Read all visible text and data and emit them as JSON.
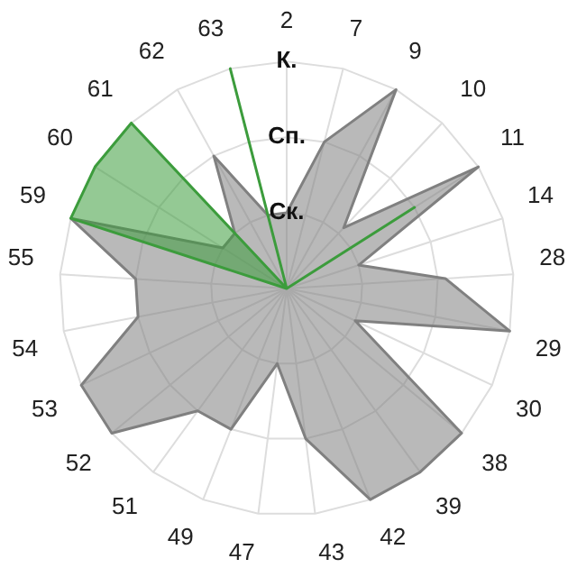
{
  "chart_data": {
    "type": "radar",
    "categories": [
      "2",
      "7",
      "9",
      "10",
      "11",
      "14",
      "28",
      "29",
      "30",
      "38",
      "39",
      "42",
      "43",
      "47",
      "49",
      "51",
      "52",
      "53",
      "54",
      "55",
      "59",
      "60",
      "61",
      "62",
      "63"
    ],
    "series": [
      {
        "color": "#808080",
        "values": [
          1,
          2,
          3,
          1.1,
          3,
          1,
          2.1,
          3,
          1,
          3,
          3,
          3,
          2,
          1,
          2,
          2,
          3,
          3,
          2,
          2,
          3,
          1,
          1,
          2,
          1
        ]
      },
      {
        "color": "#3c9c3c",
        "values": [
          0,
          0,
          0,
          0,
          2,
          0,
          0,
          0,
          0,
          0,
          0,
          0,
          0,
          0,
          0,
          0,
          0,
          0,
          0,
          0,
          3,
          3,
          3,
          0,
          3
        ]
      }
    ],
    "ylim": [
      0,
      3
    ],
    "yticks": [
      {
        "value": 1,
        "label": "Ск."
      },
      {
        "value": 2,
        "label": "Сп."
      },
      {
        "value": 3,
        "label": "К."
      }
    ],
    "grid": true,
    "legend": false,
    "marker": "none"
  }
}
